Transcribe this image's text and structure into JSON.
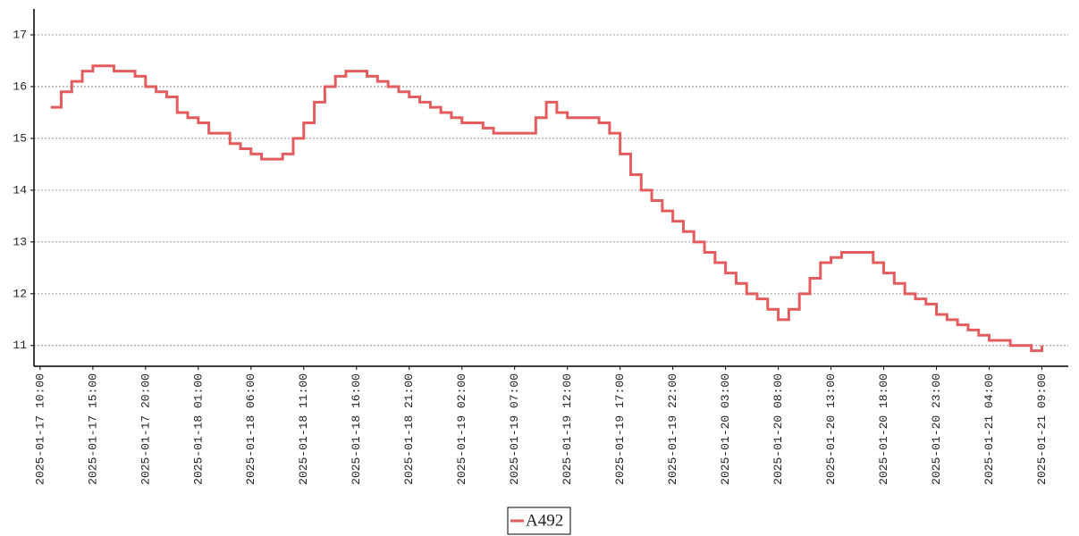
{
  "chart_data": {
    "type": "step",
    "x": [
      "2025-01-17 11:00",
      "2025-01-17 12:00",
      "2025-01-17 13:00",
      "2025-01-17 14:00",
      "2025-01-17 15:00",
      "2025-01-17 16:00",
      "2025-01-17 17:00",
      "2025-01-17 18:00",
      "2025-01-17 19:00",
      "2025-01-17 20:00",
      "2025-01-17 21:00",
      "2025-01-17 22:00",
      "2025-01-17 23:00",
      "2025-01-18 00:00",
      "2025-01-18 01:00",
      "2025-01-18 02:00",
      "2025-01-18 03:00",
      "2025-01-18 04:00",
      "2025-01-18 05:00",
      "2025-01-18 06:00",
      "2025-01-18 07:00",
      "2025-01-18 08:00",
      "2025-01-18 09:00",
      "2025-01-18 10:00",
      "2025-01-18 11:00",
      "2025-01-18 12:00",
      "2025-01-18 13:00",
      "2025-01-18 14:00",
      "2025-01-18 15:00",
      "2025-01-18 16:00",
      "2025-01-18 17:00",
      "2025-01-18 18:00",
      "2025-01-18 19:00",
      "2025-01-18 20:00",
      "2025-01-18 21:00",
      "2025-01-18 22:00",
      "2025-01-18 23:00",
      "2025-01-19 00:00",
      "2025-01-19 01:00",
      "2025-01-19 02:00",
      "2025-01-19 03:00",
      "2025-01-19 04:00",
      "2025-01-19 05:00",
      "2025-01-19 06:00",
      "2025-01-19 07:00",
      "2025-01-19 08:00",
      "2025-01-19 09:00",
      "2025-01-19 10:00",
      "2025-01-19 11:00",
      "2025-01-19 12:00",
      "2025-01-19 13:00",
      "2025-01-19 14:00",
      "2025-01-19 15:00",
      "2025-01-19 16:00",
      "2025-01-19 17:00",
      "2025-01-19 18:00",
      "2025-01-19 19:00",
      "2025-01-19 20:00",
      "2025-01-19 21:00",
      "2025-01-19 22:00",
      "2025-01-19 23:00",
      "2025-01-20 00:00",
      "2025-01-20 01:00",
      "2025-01-20 02:00",
      "2025-01-20 03:00",
      "2025-01-20 04:00",
      "2025-01-20 05:00",
      "2025-01-20 06:00",
      "2025-01-20 07:00",
      "2025-01-20 08:00",
      "2025-01-20 09:00",
      "2025-01-20 10:00",
      "2025-01-20 11:00",
      "2025-01-20 12:00",
      "2025-01-20 13:00",
      "2025-01-20 14:00",
      "2025-01-20 15:00",
      "2025-01-20 16:00",
      "2025-01-20 17:00",
      "2025-01-20 18:00",
      "2025-01-20 19:00",
      "2025-01-20 20:00",
      "2025-01-20 21:00",
      "2025-01-20 22:00",
      "2025-01-20 23:00",
      "2025-01-21 00:00",
      "2025-01-21 01:00",
      "2025-01-21 02:00",
      "2025-01-21 03:00",
      "2025-01-21 04:00",
      "2025-01-21 05:00",
      "2025-01-21 06:00",
      "2025-01-21 07:00",
      "2025-01-21 08:00",
      "2025-01-21 09:00"
    ],
    "series": [
      {
        "name": "A492",
        "color": "#e35d5f",
        "values": [
          15.6,
          15.9,
          16.1,
          16.3,
          16.4,
          16.4,
          16.3,
          16.3,
          16.2,
          16.0,
          15.9,
          15.8,
          15.5,
          15.4,
          15.3,
          15.1,
          15.1,
          14.9,
          14.8,
          14.7,
          14.6,
          14.6,
          14.7,
          15.0,
          15.3,
          15.7,
          16.0,
          16.2,
          16.3,
          16.3,
          16.2,
          16.1,
          16.0,
          15.9,
          15.8,
          15.7,
          15.6,
          15.5,
          15.4,
          15.3,
          15.3,
          15.2,
          15.1,
          15.1,
          15.1,
          15.1,
          15.4,
          15.7,
          15.5,
          15.4,
          15.4,
          15.4,
          15.3,
          15.1,
          14.7,
          14.3,
          14.0,
          13.8,
          13.6,
          13.4,
          13.2,
          13.0,
          12.8,
          12.6,
          12.4,
          12.2,
          12.0,
          11.9,
          11.7,
          11.5,
          11.7,
          12.0,
          12.3,
          12.6,
          12.7,
          12.8,
          12.8,
          12.8,
          12.6,
          12.4,
          12.2,
          12.0,
          11.9,
          11.8,
          11.6,
          11.5,
          11.4,
          11.3,
          11.2,
          11.1,
          11.1,
          11.0,
          11.0,
          10.9,
          11.0
        ]
      }
    ],
    "xlim": [
      "2025-01-17 09:25",
      "2025-01-21 11:30"
    ],
    "xticks": [
      "2025-01-17 10:00",
      "2025-01-17 15:00",
      "2025-01-17 20:00",
      "2025-01-18 01:00",
      "2025-01-18 06:00",
      "2025-01-18 11:00",
      "2025-01-18 16:00",
      "2025-01-18 21:00",
      "2025-01-19 02:00",
      "2025-01-19 07:00",
      "2025-01-19 12:00",
      "2025-01-19 17:00",
      "2025-01-19 22:00",
      "2025-01-20 03:00",
      "2025-01-20 08:00",
      "2025-01-20 13:00",
      "2025-01-20 18:00",
      "2025-01-20 23:00",
      "2025-01-21 04:00",
      "2025-01-21 09:00"
    ],
    "ylim": [
      10.6,
      17.5
    ],
    "yticks": [
      11,
      12,
      13,
      14,
      15,
      16,
      17
    ],
    "grid": true,
    "legend": "bottom"
  }
}
